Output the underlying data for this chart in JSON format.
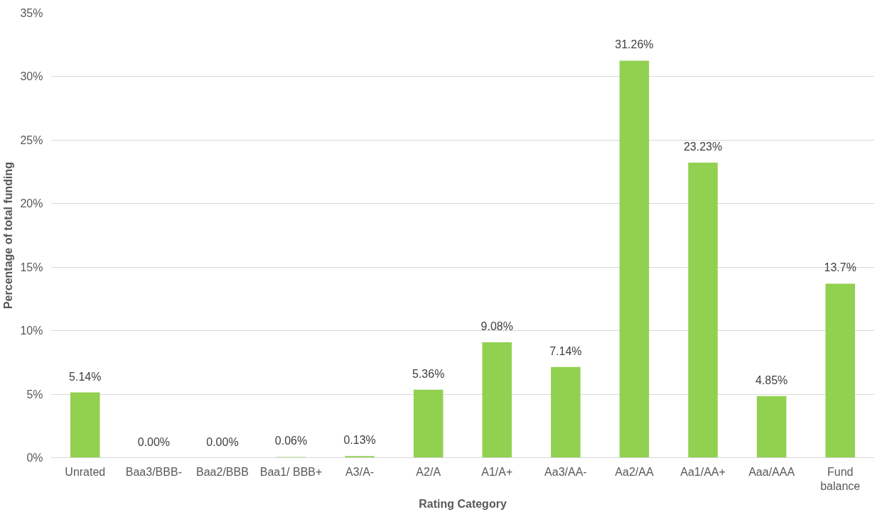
{
  "chart_data": {
    "type": "bar",
    "xlabel": "Rating Category",
    "ylabel": "Percentage of total funding",
    "categories": [
      "Unrated",
      "Baa3/BBB-",
      "Baa2/BBB",
      "Baa1/ BBB+",
      "A3/A-",
      "A2/A",
      "A1/A+",
      "Aa3/AA-",
      "Aa2/AA",
      "Aa1/AA+",
      "Aaa/AAA",
      "Fund balance"
    ],
    "values": [
      5.14,
      0.0,
      0.0,
      0.06,
      0.13,
      5.36,
      9.08,
      7.14,
      31.26,
      23.23,
      4.85,
      13.7
    ],
    "value_labels": [
      "5.14%",
      "0.00%",
      "0.00%",
      "0.06%",
      "0.13%",
      "5.36%",
      "9.08%",
      "7.14%",
      "31.26%",
      "23.23%",
      "4.85%",
      "13.7%"
    ],
    "color": "#92d050",
    "ylim": [
      0,
      35
    ],
    "yticks": [
      {
        "value": 0,
        "label": "0%"
      },
      {
        "value": 5,
        "label": "5%"
      },
      {
        "value": 10,
        "label": "10%"
      },
      {
        "value": 15,
        "label": "15%"
      },
      {
        "value": 20,
        "label": "20%"
      },
      {
        "value": 25,
        "label": "25%"
      },
      {
        "value": 30,
        "label": "30%"
      },
      {
        "value": 35,
        "label": "35%"
      }
    ],
    "grid": "y"
  }
}
